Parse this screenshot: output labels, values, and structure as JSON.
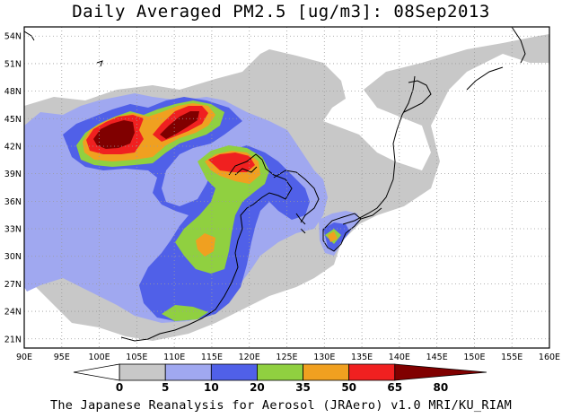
{
  "title": "Daily Averaged PM2.5 [ug/m3]: 08Sep2013",
  "footer": "The Japanese Reanalysis for Aerosol (JRAero) v1.0 MRI/KU_RIAM",
  "map": {
    "lat_labels": [
      "54N",
      "51N",
      "48N",
      "45N",
      "42N",
      "39N",
      "36N",
      "33N",
      "30N",
      "27N",
      "24N",
      "21N"
    ],
    "lon_labels": [
      "90E",
      "95E",
      "100E",
      "105E",
      "110E",
      "115E",
      "120E",
      "125E",
      "130E",
      "135E",
      "140E",
      "145E",
      "150E",
      "155E",
      "160E"
    ],
    "lon_range": [
      90,
      160
    ],
    "lat_range": [
      20,
      55
    ]
  },
  "colorbar": {
    "labels": [
      "0",
      "5",
      "10",
      "20",
      "35",
      "50",
      "65",
      "80"
    ],
    "colors": [
      "#ffffff",
      "#c8c8c8",
      "#a0a8f0",
      "#5060e8",
      "#90d040",
      "#f0a020",
      "#f02020",
      "#800000"
    ]
  },
  "colors": {
    "gray": "#c8c8c8",
    "light_blue": "#a0a8f0",
    "blue": "#5060e8",
    "green": "#90d040",
    "orange": "#f0a020",
    "red": "#f02020",
    "dark_red": "#800000"
  }
}
